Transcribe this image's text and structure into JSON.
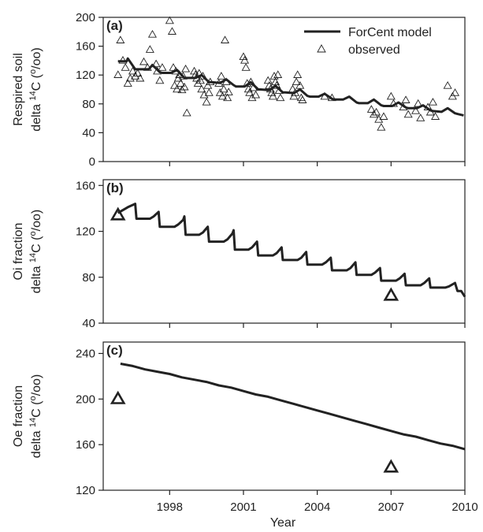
{
  "chart_data": [
    {
      "type": "line",
      "panel_label": "(a)",
      "ylabel_lines": [
        "Respired soil",
        "delta 14C (o/oo)"
      ],
      "ylabel_display": {
        "line1": "Respired soil",
        "pre": "delta ",
        "sup1": "14",
        "mid": "C (",
        "sup2": "o",
        "post": "/oo)"
      },
      "ylim": [
        0,
        200
      ],
      "yticks": [
        0,
        40,
        80,
        120,
        160,
        200
      ],
      "xlim": [
        1995.3,
        2010
      ],
      "grid": false,
      "legend_position": "top-right",
      "legend": {
        "model": "ForCent model",
        "observed": "observed"
      },
      "series": [
        {
          "name": "ForCent model",
          "kind": "line",
          "x": [
            1995.9,
            1996.25,
            1996.3,
            1996.6,
            1996.8,
            1997.15,
            1997.3,
            1997.6,
            1997.7,
            1998.05,
            1998.3,
            1998.6,
            1998.7,
            1999.05,
            1999.3,
            1999.6,
            1999.7,
            2000.05,
            2000.3,
            2000.6,
            2000.7,
            2001.05,
            2001.3,
            2001.6,
            2001.7,
            2002.05,
            2002.3,
            2002.6,
            2002.7,
            2003.05,
            2003.3,
            2003.6,
            2003.7,
            2004.05,
            2004.3,
            2004.6,
            2004.7,
            2005.05,
            2005.3,
            2005.6,
            2005.7,
            2006.05,
            2006.3,
            2006.6,
            2006.7,
            2007.05,
            2007.3,
            2007.6,
            2007.7,
            2008.05,
            2008.3,
            2008.6,
            2008.7,
            2009.05,
            2009.3,
            2009.6,
            2009.7,
            2009.95
          ],
          "y": [
            139,
            139,
            143,
            128,
            128,
            128,
            134,
            124,
            123,
            123,
            127,
            116,
            116,
            116,
            120,
            110,
            110,
            109,
            114,
            106,
            104,
            104,
            110,
            100,
            100,
            99,
            105,
            96,
            96,
            95,
            100,
            91,
            90,
            90,
            94,
            87,
            86,
            86,
            90,
            82,
            81,
            81,
            86,
            78,
            77,
            77,
            82,
            75,
            74,
            74,
            78,
            71,
            70,
            69,
            74,
            67,
            66,
            64
          ]
        },
        {
          "name": "observed",
          "kind": "scatter",
          "x": [
            1995.9,
            1996.0,
            1996.1,
            1996.2,
            1996.3,
            1996.4,
            1996.5,
            1996.6,
            1996.7,
            1996.8,
            1996.95,
            1997.1,
            1997.2,
            1997.3,
            1997.45,
            1997.5,
            1997.6,
            1997.7,
            1998.0,
            1998.1,
            1998.15,
            1998.2,
            1998.25,
            1998.3,
            1998.35,
            1998.4,
            1998.45,
            1998.5,
            1998.55,
            1998.6,
            1998.65,
            1998.7,
            1999.0,
            1999.05,
            1999.1,
            1999.15,
            1999.2,
            1999.25,
            1999.3,
            1999.35,
            1999.4,
            1999.5,
            1999.55,
            1999.6,
            1999.65,
            2000.0,
            2000.05,
            2000.1,
            2000.15,
            2000.2,
            2000.25,
            2000.3,
            2000.35,
            2000.4,
            2001.0,
            2001.05,
            2001.1,
            2001.15,
            2001.2,
            2001.25,
            2001.3,
            2001.35,
            2001.4,
            2001.5,
            2002.0,
            2002.05,
            2002.1,
            2002.15,
            2002.2,
            2002.25,
            2002.3,
            2002.35,
            2002.4,
            2002.45,
            2002.5,
            2003.0,
            2003.05,
            2003.1,
            2003.15,
            2003.2,
            2003.3,
            2003.35,
            2003.4,
            2004.3,
            2004.6,
            2006.2,
            2006.3,
            2006.4,
            2006.5,
            2006.6,
            2006.7,
            2007.0,
            2007.1,
            2007.5,
            2007.6,
            2007.7,
            2008.0,
            2008.1,
            2008.2,
            2008.5,
            2008.6,
            2008.7,
            2008.8,
            2009.3,
            2009.5,
            2009.6
          ],
          "y": [
            120,
            168,
            140,
            130,
            108,
            115,
            125,
            118,
            122,
            115,
            138,
            130,
            155,
            176,
            135,
            125,
            112,
            130,
            195,
            180,
            130,
            105,
            125,
            100,
            115,
            120,
            108,
            99,
            118,
            103,
            128,
            67,
            125,
            120,
            115,
            108,
            122,
            112,
            100,
            118,
            92,
            82,
            105,
            95,
            110,
            108,
            95,
            118,
            90,
            100,
            168,
            110,
            88,
            96,
            145,
            140,
            130,
            108,
            100,
            95,
            110,
            88,
            102,
            92,
            112,
            105,
            100,
            95,
            90,
            118,
            110,
            105,
            120,
            98,
            88,
            100,
            90,
            95,
            110,
            120,
            105,
            88,
            85,
            90,
            88,
            72,
            65,
            68,
            58,
            47,
            62,
            90,
            80,
            75,
            85,
            65,
            70,
            80,
            60,
            75,
            68,
            82,
            62,
            105,
            90,
            95
          ]
        }
      ]
    },
    {
      "type": "line",
      "panel_label": "(b)",
      "ylabel_lines": [
        "Oi fraction",
        "delta 14C (o/oo)"
      ],
      "ylabel_display": {
        "line1": "Oi fraction",
        "pre": "delta ",
        "sup1": "14",
        "mid": "C (",
        "sup2": "o",
        "post": "/oo)"
      },
      "ylim": [
        40,
        165
      ],
      "yticks": [
        40,
        80,
        120,
        160
      ],
      "xlim": [
        1995.3,
        2010
      ],
      "grid": false,
      "series": [
        {
          "name": "ForCent model",
          "kind": "line",
          "x": [
            1995.9,
            1996.3,
            1996.6,
            1996.65,
            1997.2,
            1997.35,
            1997.55,
            1997.6,
            1998.2,
            1998.35,
            1998.55,
            1998.6,
            1998.65,
            1999.2,
            1999.35,
            1999.55,
            1999.6,
            2000.2,
            2000.35,
            2000.55,
            2000.6,
            2000.65,
            2001.2,
            2001.35,
            2001.55,
            2001.6,
            2002.2,
            2002.35,
            2002.55,
            2002.6,
            2003.2,
            2003.35,
            2003.55,
            2003.6,
            2004.2,
            2004.35,
            2004.55,
            2004.6,
            2005.2,
            2005.35,
            2005.55,
            2005.6,
            2006.2,
            2006.35,
            2006.55,
            2006.6,
            2007.2,
            2007.35,
            2007.55,
            2007.6,
            2008.2,
            2008.35,
            2008.55,
            2008.6,
            2009.2,
            2009.35,
            2009.6,
            2009.7,
            2009.85,
            2010
          ],
          "y": [
            136,
            141,
            144,
            131,
            131,
            133,
            137,
            124,
            124,
            126,
            130,
            133,
            117,
            117,
            119,
            124,
            111,
            111,
            113,
            118,
            121,
            104,
            104,
            106,
            111,
            99,
            99,
            101,
            106,
            95,
            95,
            97,
            102,
            91,
            91,
            93,
            97,
            86,
            86,
            88,
            93,
            82,
            82,
            84,
            88,
            77,
            77,
            79,
            83,
            73,
            73,
            75,
            79,
            71,
            71,
            72,
            75,
            68,
            68,
            63
          ]
        },
        {
          "name": "observed",
          "kind": "scatter",
          "x": [
            1995.9,
            2007.0
          ],
          "y": [
            134,
            64
          ]
        }
      ]
    },
    {
      "type": "line",
      "panel_label": "(c)",
      "ylabel_lines": [
        "Oe fraction",
        "delta 14C (o/oo)"
      ],
      "ylabel_display": {
        "line1": "Oe fraction",
        "pre": "delta ",
        "sup1": "14",
        "mid": "C (",
        "sup2": "o",
        "post": "/oo)"
      },
      "ylim": [
        120,
        250
      ],
      "yticks": [
        120,
        160,
        200,
        240
      ],
      "xlim": [
        1995.3,
        2010
      ],
      "xticks": [
        1998,
        2001,
        2004,
        2007,
        2010
      ],
      "xlabel": "Year",
      "grid": false,
      "series": [
        {
          "name": "ForCent model",
          "kind": "line",
          "x": [
            1996.0,
            1996.5,
            1997.0,
            1997.5,
            1998.0,
            1998.5,
            1999.0,
            1999.5,
            2000.0,
            2000.5,
            2001.0,
            2001.5,
            2002.0,
            2002.5,
            2003.0,
            2003.5,
            2004.0,
            2004.5,
            2005.0,
            2005.5,
            2006.0,
            2006.5,
            2007.0,
            2007.5,
            2008.0,
            2008.5,
            2009.0,
            2009.5,
            2010.0
          ],
          "y": [
            231,
            229,
            226,
            224,
            222,
            219,
            217,
            215,
            212,
            210,
            207,
            204,
            202,
            199,
            196,
            193,
            190,
            187,
            184,
            181,
            178,
            175,
            172,
            169,
            167,
            164,
            161,
            159,
            156
          ]
        },
        {
          "name": "observed",
          "kind": "scatter",
          "x": [
            1995.9,
            2007.0
          ],
          "y": [
            200,
            140
          ]
        }
      ]
    }
  ]
}
